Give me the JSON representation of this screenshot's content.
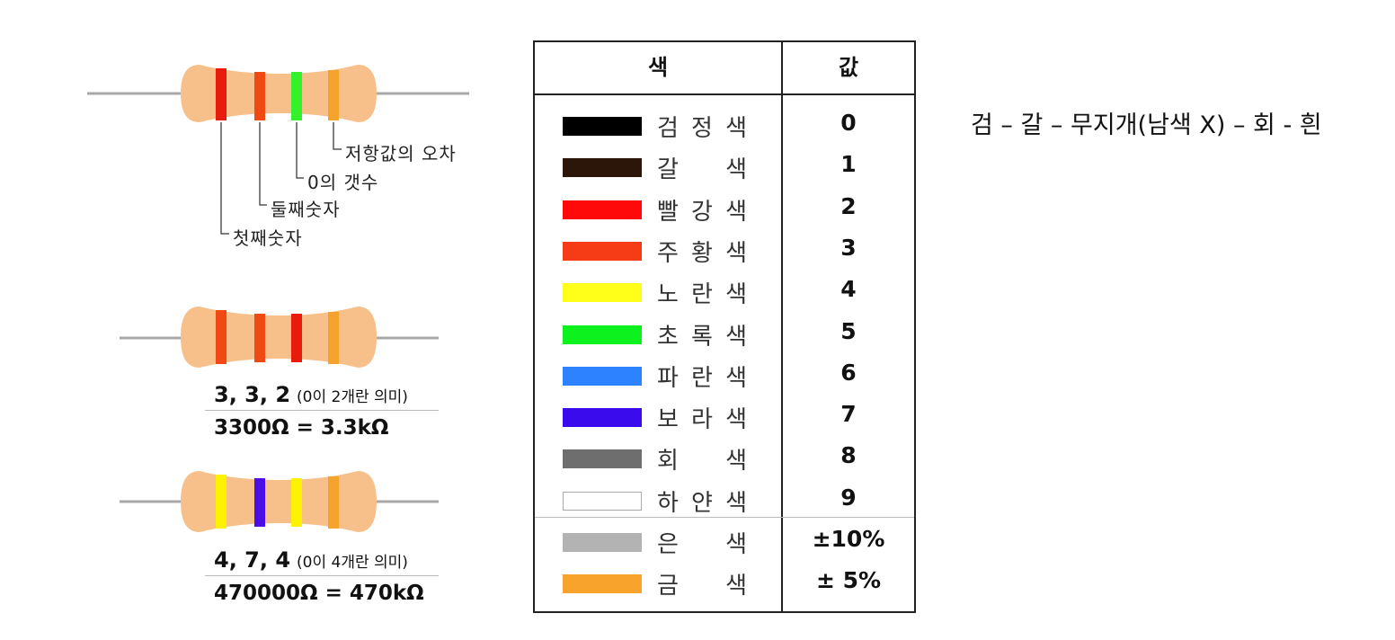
{
  "colors": {
    "resistor_body": "#f7c08a",
    "lead": "#a8a8a8",
    "band_red": "#e81b0c",
    "band_orange_red": "#ef4a13",
    "band_green": "#33f22c",
    "band_gold": "#f6a32e",
    "band_yellow": "#fff200",
    "band_violet": "#4b0ee6"
  },
  "diagram1": {
    "bands": [
      "#e81b0c",
      "#ef4a13",
      "#33f22c",
      "#f6a32e"
    ],
    "labels": {
      "tolerance": "저항값의 오차",
      "zero_count": "0의 갯수",
      "second_digit": "둘째숫자",
      "first_digit": "첫째숫자"
    }
  },
  "diagram2": {
    "bands": [
      "#ef4a13",
      "#ef4a13",
      "#e81b0c",
      "#f6a32e"
    ],
    "sequence": "3, 3, 2",
    "note": "(0이 2개란 의미)",
    "result": "3300Ω = 3.3kΩ"
  },
  "diagram3": {
    "bands": [
      "#fff200",
      "#4b0ee6",
      "#fff200",
      "#f6a32e"
    ],
    "sequence": "4, 7, 4",
    "note": "(0이 4개란 의미)",
    "result": "470000Ω = 470kΩ"
  },
  "table": {
    "header_color": "색",
    "header_value": "값",
    "rows": [
      {
        "swatch": "#000000",
        "name": [
          "검",
          "정",
          "색"
        ],
        "value": "0"
      },
      {
        "swatch": "#2b1609",
        "name": [
          "갈",
          "색"
        ],
        "value": "1"
      },
      {
        "swatch": "#ff0a0a",
        "name": [
          "빨",
          "강",
          "색"
        ],
        "value": "2"
      },
      {
        "swatch": "#f63b17",
        "name": [
          "주",
          "황",
          "색"
        ],
        "value": "3"
      },
      {
        "swatch": "#ffff1a",
        "name": [
          "노",
          "란",
          "색"
        ],
        "value": "4"
      },
      {
        "swatch": "#0df21f",
        "name": [
          "초",
          "록",
          "색"
        ],
        "value": "5"
      },
      {
        "swatch": "#2d83ff",
        "name": [
          "파",
          "란",
          "색"
        ],
        "value": "6"
      },
      {
        "swatch": "#3a0bec",
        "name": [
          "보",
          "라",
          "색"
        ],
        "value": "7"
      },
      {
        "swatch": "#6e6e6e",
        "name": [
          "회",
          "색"
        ],
        "value": "8"
      },
      {
        "swatch": "#ffffff",
        "name": [
          "하",
          "얀",
          "색"
        ],
        "value": "9"
      },
      {
        "swatch": "#b3b3b3",
        "name": [
          "은",
          "색"
        ],
        "value": "±10%"
      },
      {
        "swatch": "#f8a42c",
        "name": [
          "금",
          "색"
        ],
        "value": "± 5%"
      }
    ]
  },
  "mnemonic": "검 – 갈 – 무지개(남색 X) – 회 - 흰"
}
